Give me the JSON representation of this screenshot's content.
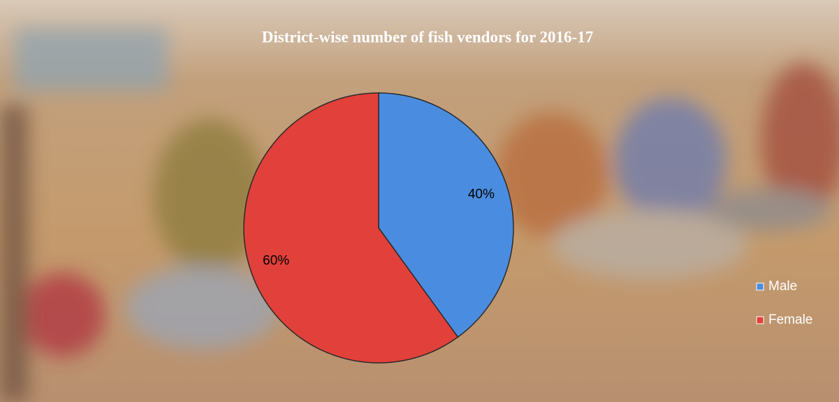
{
  "chart_data": {
    "type": "pie",
    "title": "District-wise number of fish vendors for 2016-17",
    "categories": [
      "Male",
      "Female"
    ],
    "values": [
      40,
      60
    ],
    "value_labels": [
      "40%",
      "60%"
    ],
    "colors": [
      "#4a8de0",
      "#e2403a"
    ],
    "legend": "right"
  }
}
